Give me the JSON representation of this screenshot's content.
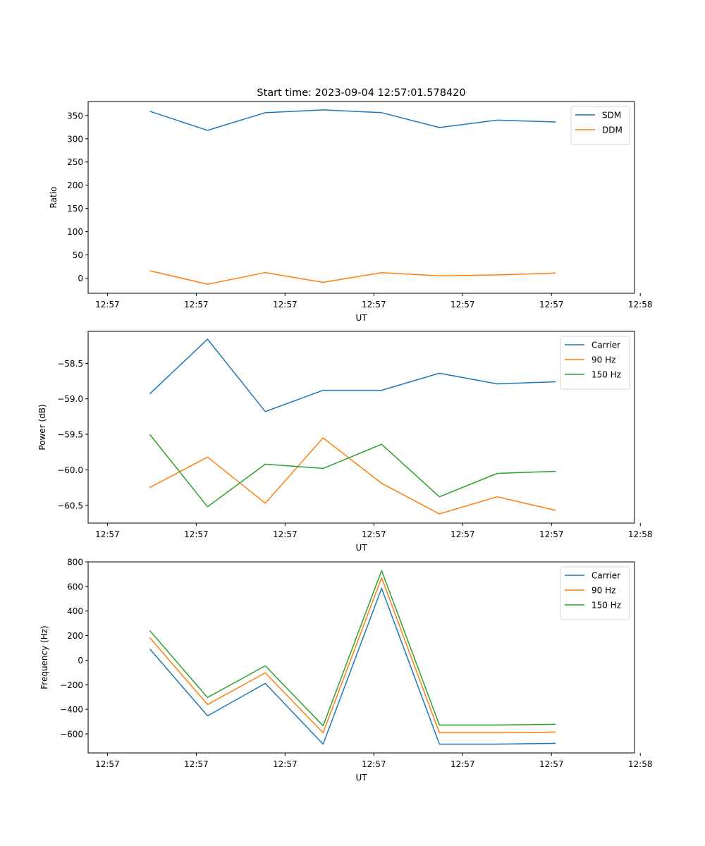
{
  "figure": {
    "title": "Start time: 2023-09-04 12:57:01.578420"
  },
  "chart_data": [
    {
      "type": "line",
      "title": "Start time: 2023-09-04 12:57:01.578420",
      "xlabel": "UT",
      "ylabel": "Ratio",
      "xlim": [
        -0.2174,
        5.9348
      ],
      "ylim": [
        -32.5,
        380
      ],
      "xticks": [
        0,
        1,
        2,
        3,
        4,
        5,
        6
      ],
      "xtick_labels": [
        "12:57",
        "12:57",
        "12:57",
        "12:57",
        "12:57",
        "12:57",
        "12:58"
      ],
      "yticks": [
        0,
        50,
        100,
        150,
        200,
        250,
        300,
        350
      ],
      "ytick_labels": [
        "0",
        "50",
        "100",
        "150",
        "200",
        "250",
        "300",
        "350"
      ],
      "x": [
        0.4762,
        1.127,
        1.7778,
        2.4286,
        3.0873,
        3.7381,
        4.3889,
        5.0476
      ],
      "series": [
        {
          "name": "SDM",
          "color": "#1f77b4",
          "values": [
            359,
            318,
            356,
            362,
            356,
            324,
            340,
            336
          ]
        },
        {
          "name": "DDM",
          "color": "#ff7f0e",
          "values": [
            16,
            -13,
            12,
            -9,
            12,
            5,
            7,
            11
          ]
        }
      ],
      "legend": "top-right",
      "grid": false
    },
    {
      "type": "line",
      "title": "",
      "xlabel": "UT",
      "ylabel": "Power (dB)",
      "xlim": [
        -0.2174,
        5.9348
      ],
      "ylim": [
        -60.75,
        -58.05
      ],
      "xticks": [
        0,
        1,
        2,
        3,
        4,
        5,
        6
      ],
      "xtick_labels": [
        "12:57",
        "12:57",
        "12:57",
        "12:57",
        "12:57",
        "12:57",
        "12:58"
      ],
      "yticks": [
        -58.5,
        -59.0,
        -59.5,
        -60.0,
        -60.5
      ],
      "ytick_labels": [
        "−58.5",
        "−59.0",
        "−59.5",
        "−60.0",
        "−60.5"
      ],
      "x": [
        0.4762,
        1.127,
        1.7778,
        2.4286,
        3.0873,
        3.7381,
        4.3889,
        5.0476
      ],
      "series": [
        {
          "name": "Carrier",
          "color": "#1f77b4",
          "values": [
            -58.93,
            -58.16,
            -59.18,
            -58.88,
            -58.88,
            -58.64,
            -58.79,
            -58.76
          ]
        },
        {
          "name": "90 Hz",
          "color": "#ff7f0e",
          "values": [
            -60.25,
            -59.82,
            -60.47,
            -59.55,
            -60.19,
            -60.62,
            -60.38,
            -60.57
          ]
        },
        {
          "name": "150 Hz",
          "color": "#2ca02c",
          "values": [
            -59.5,
            -60.52,
            -59.92,
            -59.98,
            -59.64,
            -60.38,
            -60.05,
            -60.02
          ]
        }
      ],
      "legend": "top-right",
      "grid": false
    },
    {
      "type": "line",
      "title": "",
      "xlabel": "UT",
      "ylabel": "Frequency (Hz)",
      "xlim": [
        -0.2174,
        5.9348
      ],
      "ylim": [
        -755,
        800
      ],
      "xticks": [
        0,
        1,
        2,
        3,
        4,
        5,
        6
      ],
      "xtick_labels": [
        "12:57",
        "12:57",
        "12:57",
        "12:57",
        "12:57",
        "12:57",
        "12:58"
      ],
      "yticks": [
        800,
        600,
        400,
        200,
        0,
        -200,
        -400,
        -600
      ],
      "ytick_labels": [
        "800",
        "600",
        "400",
        "200",
        "0",
        "−200",
        "−400",
        "−600"
      ],
      "x": [
        0.4762,
        1.127,
        1.7778,
        2.4286,
        3.0873,
        3.7381,
        4.3889,
        5.0476
      ],
      "series": [
        {
          "name": "Carrier",
          "color": "#1f77b4",
          "values": [
            92,
            -453,
            -189,
            -683,
            585,
            -683,
            -683,
            -677
          ]
        },
        {
          "name": "90 Hz",
          "color": "#ff7f0e",
          "values": [
            184,
            -361,
            -103,
            -591,
            671,
            -591,
            -591,
            -585
          ]
        },
        {
          "name": "150 Hz",
          "color": "#2ca02c",
          "values": [
            241,
            -304,
            -46,
            -534,
            729,
            -528,
            -528,
            -522
          ]
        }
      ],
      "legend": "top-right",
      "grid": false
    }
  ]
}
